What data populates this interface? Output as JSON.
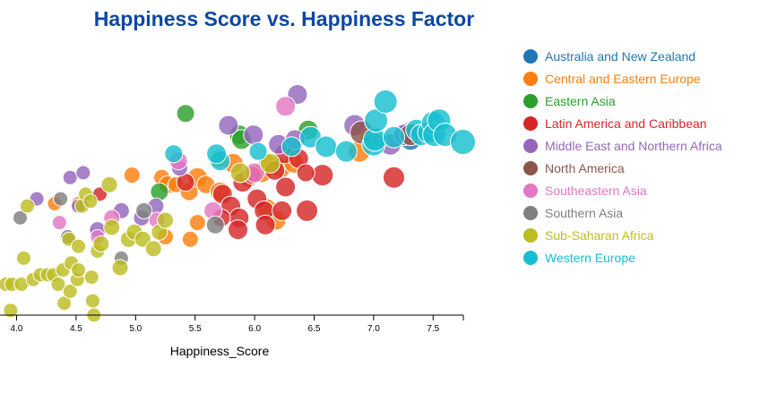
{
  "chart_data": {
    "type": "scatter",
    "title": "Happiness Score vs. Happiness Factor",
    "xlabel": "Happiness_Score",
    "ylabel": "",
    "xlim": [
      3.95,
      7.75
    ],
    "ylim": [
      0,
      1
    ],
    "xticks": [
      "4.0",
      "4.5",
      "5.0",
      "5.5",
      "6.0",
      "6.5",
      "7.0",
      "7.5"
    ],
    "legend_position": "right",
    "series": [
      {
        "name": "Australia and New Zealand",
        "color": "#1f77b4",
        "points": [
          [
            7.29,
            0.77,
            11
          ],
          [
            7.31,
            0.74,
            12
          ]
        ]
      },
      {
        "name": "Central and Eastern Europe",
        "color": "#ff7f0e",
        "points": [
          [
            4.32,
            0.47,
            8
          ],
          [
            4.52,
            0.47,
            8
          ],
          [
            4.97,
            0.59,
            9
          ],
          [
            5.22,
            0.58,
            9
          ],
          [
            5.27,
            0.55,
            10
          ],
          [
            5.34,
            0.55,
            9
          ],
          [
            5.45,
            0.52,
            10
          ],
          [
            5.52,
            0.58,
            11
          ],
          [
            5.59,
            0.55,
            10
          ],
          [
            5.71,
            0.52,
            11
          ],
          [
            5.82,
            0.64,
            11
          ],
          [
            5.95,
            0.58,
            11
          ],
          [
            6.06,
            0.6,
            11
          ],
          [
            6.11,
            0.64,
            10
          ],
          [
            6.22,
            0.62,
            11
          ],
          [
            6.33,
            0.64,
            11
          ],
          [
            6.88,
            0.69,
            12
          ],
          [
            6.98,
            0.75,
            12
          ],
          [
            5.25,
            0.33,
            9
          ],
          [
            5.46,
            0.32,
            9
          ],
          [
            5.52,
            0.39,
            9
          ],
          [
            6.1,
            0.45,
            11
          ],
          [
            6.18,
            0.4,
            11
          ]
        ]
      },
      {
        "name": "Eastern Asia",
        "color": "#2ca02c",
        "points": [
          [
            5.2,
            0.52,
            10
          ],
          [
            5.42,
            0.85,
            10
          ],
          [
            5.87,
            0.76,
            11
          ],
          [
            5.89,
            0.74,
            11
          ],
          [
            6.45,
            0.78,
            11
          ]
        ]
      },
      {
        "name": "Latin America and Caribbean",
        "color": "#d62728",
        "points": [
          [
            4.7,
            0.51,
            8
          ],
          [
            5.42,
            0.56,
            10
          ],
          [
            5.73,
            0.51,
            11
          ],
          [
            5.8,
            0.46,
            11
          ],
          [
            5.87,
            0.41,
            11
          ],
          [
            5.9,
            0.56,
            11
          ],
          [
            5.98,
            0.59,
            10
          ],
          [
            6.02,
            0.49,
            11
          ],
          [
            6.08,
            0.44,
            11
          ],
          [
            6.09,
            0.38,
            11
          ],
          [
            6.17,
            0.61,
            11
          ],
          [
            6.25,
            0.68,
            11
          ],
          [
            6.26,
            0.54,
            11
          ],
          [
            6.37,
            0.66,
            11
          ],
          [
            6.44,
            0.44,
            12
          ],
          [
            6.57,
            0.59,
            12
          ],
          [
            6.43,
            0.6,
            10
          ],
          [
            7.17,
            0.58,
            12
          ],
          [
            5.86,
            0.36,
            11
          ],
          [
            5.72,
            0.41,
            10
          ],
          [
            6.23,
            0.44,
            11
          ]
        ]
      },
      {
        "name": "Middle East and Northern Africa",
        "color": "#9467bd",
        "points": [
          [
            4.17,
            0.49,
            8
          ],
          [
            4.45,
            0.58,
            8
          ],
          [
            4.52,
            0.46,
            8
          ],
          [
            4.56,
            0.6,
            8
          ],
          [
            4.68,
            0.36,
            9
          ],
          [
            4.88,
            0.44,
            9
          ],
          [
            5.05,
            0.41,
            9
          ],
          [
            5.37,
            0.62,
            9
          ],
          [
            5.17,
            0.46,
            9
          ],
          [
            5.78,
            0.8,
            11
          ],
          [
            5.99,
            0.76,
            11
          ],
          [
            6.2,
            0.72,
            11
          ],
          [
            6.36,
            0.93,
            11
          ],
          [
            6.84,
            0.8,
            12
          ],
          [
            7.14,
            0.72,
            12
          ],
          [
            7.26,
            0.76,
            12
          ],
          [
            6.34,
            0.74,
            11
          ]
        ]
      },
      {
        "name": "North America",
        "color": "#8c564b",
        "points": [
          [
            6.9,
            0.77,
            13
          ],
          [
            7.31,
            0.76,
            12
          ]
        ]
      },
      {
        "name": "Southeastern Asia",
        "color": "#e377c2",
        "points": [
          [
            4.36,
            0.39,
            8
          ],
          [
            4.68,
            0.33,
            8
          ],
          [
            4.8,
            0.41,
            9
          ],
          [
            5.18,
            0.4,
            9
          ],
          [
            5.36,
            0.65,
            10
          ],
          [
            5.65,
            0.44,
            10
          ],
          [
            6.0,
            0.6,
            11
          ],
          [
            6.26,
            0.88,
            11
          ]
        ]
      },
      {
        "name": "Southern Asia",
        "color": "#7f7f7f",
        "points": [
          [
            4.03,
            0.41,
            8
          ],
          [
            4.37,
            0.49,
            8
          ],
          [
            4.43,
            0.33,
            8
          ],
          [
            4.88,
            0.24,
            8
          ],
          [
            5.07,
            0.44,
            9
          ],
          [
            5.67,
            0.38,
            10
          ]
        ]
      },
      {
        "name": "Sub-Saharan Africa",
        "color": "#bcbd22",
        "points": [
          [
            3.91,
            0.13,
            8
          ],
          [
            3.96,
            0.13,
            8
          ],
          [
            4.04,
            0.13,
            8
          ],
          [
            3.95,
            0.02,
            8
          ],
          [
            4.06,
            0.24,
            8
          ],
          [
            4.09,
            0.46,
            8
          ],
          [
            4.14,
            0.15,
            8
          ],
          [
            4.2,
            0.17,
            8
          ],
          [
            4.26,
            0.17,
            8
          ],
          [
            4.31,
            0.17,
            8
          ],
          [
            4.35,
            0.13,
            8
          ],
          [
            4.39,
            0.19,
            8
          ],
          [
            4.4,
            0.05,
            8
          ],
          [
            4.44,
            0.32,
            8
          ],
          [
            4.45,
            0.1,
            8
          ],
          [
            4.46,
            0.22,
            8
          ],
          [
            4.51,
            0.15,
            8
          ],
          [
            4.52,
            0.19,
            8
          ],
          [
            4.52,
            0.29,
            8
          ],
          [
            4.55,
            0.46,
            8
          ],
          [
            4.58,
            0.51,
            8
          ],
          [
            4.62,
            0.48,
            8
          ],
          [
            4.63,
            0.16,
            8
          ],
          [
            4.64,
            0.06,
            8
          ],
          [
            4.65,
            0.0,
            8
          ],
          [
            4.68,
            0.27,
            8
          ],
          [
            4.71,
            0.3,
            9
          ],
          [
            4.78,
            0.55,
            9
          ],
          [
            4.8,
            0.37,
            9
          ],
          [
            4.87,
            0.2,
            9
          ],
          [
            4.94,
            0.32,
            9
          ],
          [
            4.99,
            0.35,
            9
          ],
          [
            5.06,
            0.32,
            9
          ],
          [
            5.15,
            0.28,
            9
          ],
          [
            5.2,
            0.35,
            9
          ],
          [
            5.25,
            0.4,
            9
          ],
          [
            5.7,
            0.66,
            10
          ],
          [
            5.88,
            0.6,
            11
          ],
          [
            6.13,
            0.64,
            11
          ]
        ]
      },
      {
        "name": "Western Europe",
        "color": "#17becf",
        "points": [
          [
            5.32,
            0.68,
            10
          ],
          [
            5.71,
            0.65,
            11
          ],
          [
            5.68,
            0.68,
            11
          ],
          [
            6.03,
            0.69,
            10
          ],
          [
            6.31,
            0.71,
            11
          ],
          [
            6.47,
            0.75,
            12
          ],
          [
            6.6,
            0.71,
            12
          ],
          [
            6.77,
            0.69,
            12
          ],
          [
            7.0,
            0.72,
            13
          ],
          [
            7.01,
            0.74,
            13
          ],
          [
            7.02,
            0.82,
            13
          ],
          [
            7.1,
            0.9,
            13
          ],
          [
            7.17,
            0.75,
            12
          ],
          [
            7.36,
            0.78,
            12
          ],
          [
            7.4,
            0.76,
            12
          ],
          [
            7.46,
            0.77,
            12
          ],
          [
            7.5,
            0.81,
            13
          ],
          [
            7.51,
            0.76,
            13
          ],
          [
            7.55,
            0.82,
            13
          ],
          [
            7.6,
            0.76,
            13
          ],
          [
            7.75,
            0.73,
            14
          ]
        ]
      }
    ]
  }
}
